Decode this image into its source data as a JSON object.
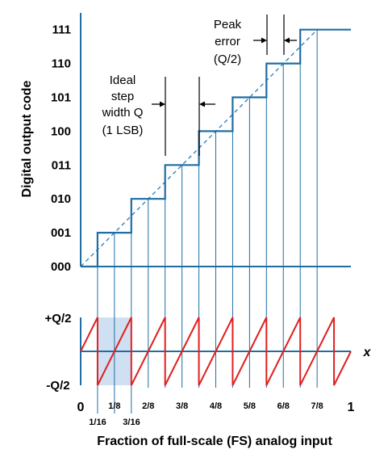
{
  "y_axis_title": "Digital output code",
  "x_axis_title": "Fraction of full-scale (FS) analog input",
  "codes": [
    "000",
    "001",
    "010",
    "011",
    "100",
    "101",
    "110",
    "111"
  ],
  "error_labels": {
    "plus": "+Q/2",
    "minus": "-Q/2"
  },
  "x_symbol": "x",
  "x_ticks_major": {
    "zero": "0",
    "one": "1"
  },
  "x_ticks_eighths": [
    "1/8",
    "2/8",
    "3/8",
    "4/8",
    "5/8",
    "6/8",
    "7/8"
  ],
  "x_ticks_sixteenths": [
    "1/16",
    "3/16"
  ],
  "annotations": {
    "step_width": [
      "Ideal",
      "step",
      "width Q",
      "(1 LSB)"
    ],
    "peak_error": [
      "Peak",
      "error",
      "(Q/2)"
    ]
  },
  "colors": {
    "staircase": "#1f6ea3",
    "error": "#e02020",
    "highlight": "#cfe0f2",
    "axis": "#1f6ea3"
  },
  "chart_data": {
    "type": "line",
    "series": [
      {
        "x": [
          0,
          0.0625,
          0.0625,
          0.1875,
          0.1875,
          0.3125,
          0.3125,
          0.4375,
          0.4375,
          0.5625,
          0.5625,
          0.6875,
          0.6875,
          0.8125,
          0.8125,
          1.0
        ],
        "y": [
          0,
          0,
          1,
          1,
          2,
          2,
          3,
          3,
          4,
          4,
          5,
          5,
          6,
          6,
          7,
          7
        ]
      },
      {
        "x": [
          0,
          0.875
        ],
        "y": [
          0,
          7
        ]
      }
    ],
    "error_sawtooth_x": [
      0,
      0.0625,
      0.1875,
      0.3125,
      0.4375,
      0.5625,
      0.6875,
      0.8125,
      0.9375,
      1.0
    ],
    "error_range": [
      -0.5,
      0.5
    ]
  }
}
